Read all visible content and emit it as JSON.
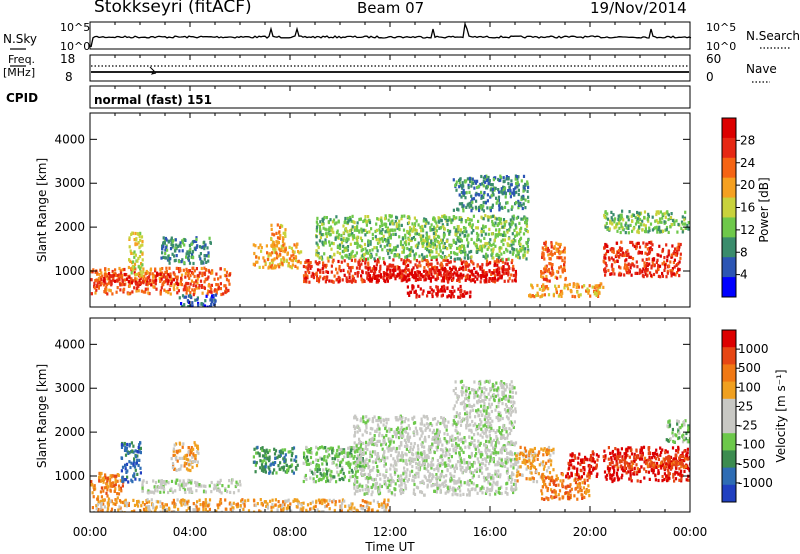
{
  "header": {
    "station": "Stokkseyri (fitACF)",
    "beam": "Beam 07",
    "date": "19/Nov/2014"
  },
  "strip": {
    "nsky_label": "N.Sky",
    "nsearch_label": "N.Search",
    "freq_label": "Freq.",
    "freq_unit": "[MHz]",
    "nave_label": "Nave",
    "cpid_label": "CPID",
    "cpid_value": "normal (fast) 151",
    "noise_ticks_left": [
      "10^5",
      "10^0"
    ],
    "noise_ticks_right": [
      "10^5",
      "10^0"
    ],
    "freq_ticks_left": [
      "18",
      "8"
    ],
    "nave_ticks_right": [
      "60",
      "0"
    ]
  },
  "colors": {
    "power_scale": [
      "#0000ff",
      "#2c55b4",
      "#3a8c6c",
      "#6ec84a",
      "#c8d23c",
      "#f5a020",
      "#f56414",
      "#e62814",
      "#dc0000"
    ],
    "velocity_scale": [
      "#2040c0",
      "#2e6cb4",
      "#3c8c50",
      "#6cc84a",
      "#c8c8c4",
      "#c8c8c4",
      "#f0a020",
      "#f07814",
      "#e64614",
      "#dc0000"
    ]
  },
  "chart_data": [
    {
      "type": "heatmap",
      "name": "power",
      "ylabel": "Slant Range [km]",
      "ylim": [
        180,
        4600
      ],
      "yticks": [
        "1000",
        "2000",
        "3000",
        "4000"
      ],
      "colorbar_label": "Power [dB]",
      "colorbar_ticks": [
        "4",
        "8",
        "12",
        "16",
        "20",
        "24",
        "28"
      ],
      "colorbar_range": [
        0,
        32
      ],
      "blobs": [
        {
          "t0": 0.0,
          "t1": 5.6,
          "r0": 500,
          "r1": 1100,
          "v": 22
        },
        {
          "t0": 0.3,
          "t1": 3.6,
          "r0": 720,
          "r1": 1000,
          "v": 28
        },
        {
          "t0": 1.5,
          "t1": 2.1,
          "r0": 900,
          "r1": 1900,
          "v": 16
        },
        {
          "t0": 2.8,
          "t1": 4.8,
          "r0": 1200,
          "r1": 1800,
          "v": 10
        },
        {
          "t0": 6.5,
          "t1": 8.4,
          "r0": 1100,
          "r1": 1650,
          "v": 20
        },
        {
          "t0": 7.2,
          "t1": 7.8,
          "r0": 1500,
          "r1": 2100,
          "v": 18
        },
        {
          "t0": 8.5,
          "t1": 17.0,
          "r0": 780,
          "r1": 1300,
          "v": 26
        },
        {
          "t0": 11.0,
          "t1": 16.5,
          "r0": 800,
          "r1": 1100,
          "v": 30
        },
        {
          "t0": 12.6,
          "t1": 15.2,
          "r0": 420,
          "r1": 700,
          "v": 30
        },
        {
          "t0": 9.0,
          "t1": 17.5,
          "r0": 1300,
          "r1": 2300,
          "v": 12
        },
        {
          "t0": 14.5,
          "t1": 17.5,
          "r0": 2400,
          "r1": 3200,
          "v": 8
        },
        {
          "t0": 17.5,
          "t1": 20.5,
          "r0": 450,
          "r1": 750,
          "v": 18
        },
        {
          "t0": 18.0,
          "t1": 19.0,
          "r0": 800,
          "r1": 1700,
          "v": 22
        },
        {
          "t0": 20.5,
          "t1": 23.6,
          "r0": 900,
          "r1": 1700,
          "v": 28
        },
        {
          "t0": 20.5,
          "t1": 24.0,
          "r0": 1900,
          "r1": 2400,
          "v": 12
        },
        {
          "t0": 3.5,
          "t1": 5.0,
          "r0": 200,
          "r1": 500,
          "v": 6
        }
      ]
    },
    {
      "type": "heatmap",
      "name": "velocity",
      "ylabel": "Slant Range [km]",
      "xlabel": "Time UT",
      "ylim": [
        180,
        4600
      ],
      "yticks": [
        "1000",
        "2000",
        "3000",
        "4000"
      ],
      "xticks": [
        "00:00",
        "04:00",
        "08:00",
        "12:00",
        "16:00",
        "20:00",
        "00:00"
      ],
      "xlim": [
        0,
        24
      ],
      "colorbar_label": "Velocity [m s⁻¹]",
      "colorbar_ticks": [
        "1000",
        "500",
        "100",
        "25",
        "-25",
        "-100",
        "-500",
        "-1000"
      ],
      "blobs": [
        {
          "t0": 0.0,
          "t1": 1.3,
          "r0": 500,
          "r1": 1100,
          "v": 7
        },
        {
          "t0": 1.2,
          "t1": 2.0,
          "r0": 900,
          "r1": 1800,
          "v": 1
        },
        {
          "t0": 2.0,
          "t1": 6.0,
          "r0": 650,
          "r1": 950,
          "v": 4
        },
        {
          "t0": 3.2,
          "t1": 4.3,
          "r0": 1150,
          "r1": 1800,
          "v": 6
        },
        {
          "t0": 6.5,
          "t1": 8.3,
          "r0": 1100,
          "r1": 1700,
          "v": 2
        },
        {
          "t0": 8.5,
          "t1": 11.0,
          "r0": 900,
          "r1": 1700,
          "v": 3
        },
        {
          "t0": 10.5,
          "t1": 17.0,
          "r0": 600,
          "r1": 2400,
          "v": 4
        },
        {
          "t0": 14.5,
          "t1": 17.0,
          "r0": 2400,
          "r1": 3200,
          "v": 4
        },
        {
          "t0": 17.0,
          "t1": 18.5,
          "r0": 900,
          "r1": 1700,
          "v": 6
        },
        {
          "t0": 18.0,
          "t1": 20.0,
          "r0": 500,
          "r1": 1100,
          "v": 7
        },
        {
          "t0": 19.0,
          "t1": 20.3,
          "r0": 1000,
          "r1": 1600,
          "v": 9
        },
        {
          "t0": 20.5,
          "t1": 24.0,
          "r0": 900,
          "r1": 1700,
          "v": 9
        },
        {
          "t0": 21.0,
          "t1": 23.8,
          "r0": 1200,
          "r1": 1500,
          "v": 8
        },
        {
          "t0": 23.0,
          "t1": 24.0,
          "r0": 1800,
          "r1": 2300,
          "v": 3
        },
        {
          "t0": 0.0,
          "t1": 12.0,
          "r0": 200,
          "r1": 500,
          "v": 6
        }
      ]
    }
  ]
}
